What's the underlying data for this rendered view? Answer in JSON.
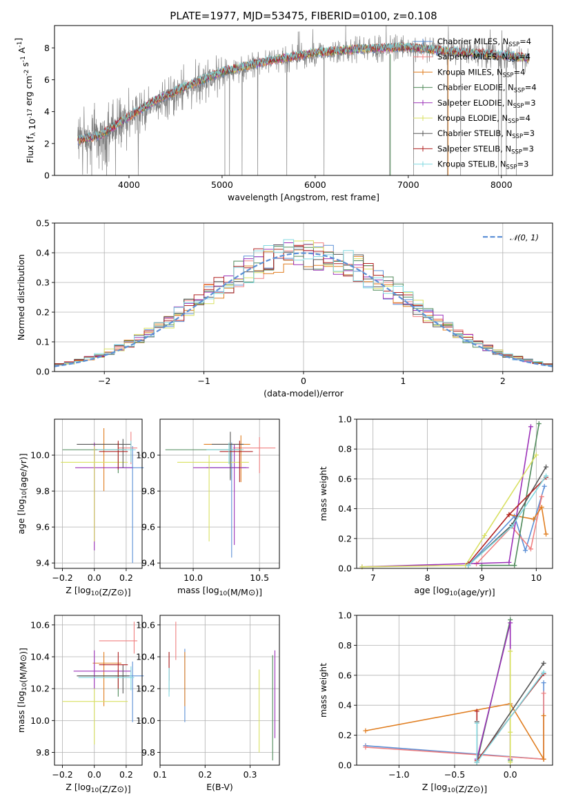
{
  "figure_title": "PLATE=1977, MJD=53475, FIBERID=0100, z=0.108",
  "models": [
    {
      "name": "Chabrier MILES, N_SSP=4",
      "base": "Chabrier MILES, N",
      "sub": "SSP",
      "suffix": "=4",
      "color": "#5b8fd6"
    },
    {
      "name": "Salpeter MILES, N_SSP=4",
      "base": "Salpeter MILES, N",
      "sub": "SSP",
      "suffix": "=4",
      "color": "#f07f7f"
    },
    {
      "name": "Kroupa MILES, N_SSP=4",
      "base": "Kroupa MILES, N",
      "sub": "SSP",
      "suffix": "=4",
      "color": "#e07d1f"
    },
    {
      "name": "Chabrier ELODIE, N_SSP=4",
      "base": "Chabrier ELODIE, N",
      "sub": "SSP",
      "suffix": "=4",
      "color": "#4f8a5a"
    },
    {
      "name": "Salpeter ELODIE, N_SSP=3",
      "base": "Salpeter ELODIE, N",
      "sub": "SSP",
      "suffix": "=3",
      "color": "#9b30b8"
    },
    {
      "name": "Kroupa ELODIE, N_SSP=4",
      "base": "Kroupa ELODIE, N",
      "sub": "SSP",
      "suffix": "=4",
      "color": "#d8e060"
    },
    {
      "name": "Chabrier STELIB, N_SSP=3",
      "base": "Chabrier STELIB, N",
      "sub": "SSP",
      "suffix": "=3",
      "color": "#555555"
    },
    {
      "name": "Salpeter STELIB, N_SSP=3",
      "base": "Salpeter STELIB, N",
      "sub": "SSP",
      "suffix": "=3",
      "color": "#b02020"
    },
    {
      "name": "Kroupa STELIB, N_SSP=3",
      "base": "Kroupa STELIB, N",
      "sub": "SSP",
      "suffix": "=3",
      "color": "#80d8e0"
    }
  ],
  "chart_data": [
    {
      "id": "spectrum",
      "type": "line",
      "xlabel": "wavelength [Angstrom, rest frame]",
      "ylabel": "Flux [f_λ 10^-17 erg cm^-2 s^-1 A^-1]",
      "xlim": [
        3200,
        8550
      ],
      "ylim": [
        0,
        9.4
      ],
      "xticks": [
        4000,
        5000,
        6000,
        7000,
        8000
      ],
      "yticks": [
        0,
        2,
        4,
        6,
        8
      ],
      "data_color": "#808080",
      "data_envelope": {
        "x": [
          3450,
          3700,
          4000,
          4300,
          4600,
          5000,
          5500,
          6000,
          6500,
          7000,
          7500,
          8000,
          8300
        ],
        "y": [
          2.2,
          2.5,
          3.6,
          4.6,
          5.4,
          6.4,
          7.1,
          7.6,
          7.9,
          8.0,
          7.7,
          7.5,
          7.3
        ]
      },
      "model_continuum": {
        "x": [
          3450,
          3700,
          4000,
          4300,
          4600,
          5000,
          5500,
          6000,
          6500,
          7000,
          7500,
          8000,
          8300
        ],
        "y": [
          2.2,
          2.55,
          3.7,
          4.75,
          5.55,
          6.5,
          7.2,
          7.7,
          7.95,
          8.05,
          7.75,
          7.55,
          7.35
        ]
      },
      "legend_loc": "upper right"
    },
    {
      "id": "residuals",
      "type": "step",
      "xlabel": "(data-model)/error",
      "ylabel": "Normed distribution",
      "xlim": [
        -2.5,
        2.5
      ],
      "ylim": [
        0,
        0.5
      ],
      "xticks": [
        -2,
        -1,
        0,
        1,
        2
      ],
      "xticklabels": [
        "−2",
        "−1",
        "0",
        "1",
        "2"
      ],
      "yticks": [
        0,
        0.1,
        0.2,
        0.3,
        0.4,
        0.5
      ],
      "yticklabels": [
        "0.0",
        "0.1",
        "0.2",
        "0.3",
        "0.4",
        "0.5"
      ],
      "bin_width": 0.1,
      "reference_curve": {
        "label": "𝒩(0, 1)",
        "color": "#5b8fd6",
        "mean": 0,
        "sigma": 1
      },
      "legend_loc": "upper right"
    },
    {
      "id": "z_age",
      "type": "errorbar",
      "xlabel": "Z [log10(Z/Z⊙)]",
      "ylabel": "age  [log10(age/yr)]",
      "xlim": [
        -0.25,
        0.3
      ],
      "ylim": [
        9.37,
        10.2
      ],
      "xticks": [
        -0.2,
        0.0,
        0.2
      ],
      "xticklabels": [
        "−0.2",
        "0.0",
        "0.2"
      ],
      "yticks": [
        9.4,
        9.6,
        9.8,
        10.0
      ],
      "yticklabels": [
        "9.4",
        "9.6",
        "9.8",
        "10.0"
      ],
      "points": [
        {
          "m": 0,
          "x": 0.24,
          "y": 9.93,
          "xl": 0.14,
          "xh": 0.31,
          "yl": 9.4,
          "yh": 10.05
        },
        {
          "m": 1,
          "x": 0.23,
          "y": 10.04,
          "xl": 0.15,
          "xh": 0.27,
          "yl": 9.95,
          "yh": 10.13
        },
        {
          "m": 2,
          "x": 0.06,
          "y": 10.06,
          "xl": -0.02,
          "xh": 0.16,
          "yl": 9.8,
          "yh": 10.15
        },
        {
          "m": 3,
          "x": 0.15,
          "y": 10.03,
          "xl": -0.2,
          "xh": 0.2,
          "yl": 9.9,
          "yh": 10.07
        },
        {
          "m": 4,
          "x": 0.0,
          "y": 9.93,
          "xl": -0.12,
          "xh": 0.24,
          "yl": 9.47,
          "yh": 10.07
        },
        {
          "m": 5,
          "x": 0.0,
          "y": 9.96,
          "xl": -0.21,
          "xh": 0.21,
          "yl": 9.52,
          "yh": 10.05
        },
        {
          "m": 6,
          "x": 0.18,
          "y": 10.06,
          "xl": -0.11,
          "xh": 0.23,
          "yl": 9.93,
          "yh": 10.09
        },
        {
          "m": 7,
          "x": 0.15,
          "y": 10.02,
          "xl": 0.03,
          "xh": 0.21,
          "yl": 9.92,
          "yh": 10.08
        },
        {
          "m": 8,
          "x": 0.23,
          "y": 10.03,
          "xl": 0.02,
          "xh": 0.26,
          "yl": 9.96,
          "yh": 10.08
        }
      ]
    },
    {
      "id": "mass_age",
      "type": "errorbar",
      "xlabel": "mass [log10(M/M⊙)]",
      "ylabel": "",
      "xlim": [
        9.75,
        10.65
      ],
      "ylim": [
        9.37,
        10.2
      ],
      "xticks": [
        10.0,
        10.5
      ],
      "xticklabels": [
        "10.0",
        "10.5"
      ],
      "yticks": [
        9.4,
        9.6,
        9.8,
        10.0
      ],
      "yticklabels": [
        "9.4",
        "9.6",
        "9.8",
        "10.0"
      ],
      "points": [
        {
          "m": 0,
          "x": 10.29,
          "y": 9.93,
          "xl": 10.1,
          "xh": 10.4,
          "yl": 9.43,
          "yh": 10.07
        },
        {
          "m": 1,
          "x": 10.5,
          "y": 10.04,
          "xl": 10.3,
          "xh": 10.62,
          "yl": 9.9,
          "yh": 10.1
        },
        {
          "m": 2,
          "x": 10.36,
          "y": 10.06,
          "xl": 10.08,
          "xh": 10.43,
          "yl": 9.85,
          "yh": 10.11
        },
        {
          "m": 3,
          "x": 10.28,
          "y": 10.03,
          "xl": 9.79,
          "xh": 10.36,
          "yl": 9.87,
          "yh": 10.06
        },
        {
          "m": 4,
          "x": 10.31,
          "y": 9.93,
          "xl": 10.0,
          "xh": 10.42,
          "yl": 9.5,
          "yh": 10.06
        },
        {
          "m": 5,
          "x": 10.12,
          "y": 9.96,
          "xl": 9.88,
          "xh": 10.42,
          "yl": 9.52,
          "yh": 10.0
        },
        {
          "m": 6,
          "x": 10.28,
          "y": 10.06,
          "xl": 10.14,
          "xh": 10.38,
          "yl": 9.86,
          "yh": 10.13
        },
        {
          "m": 7,
          "x": 10.35,
          "y": 10.02,
          "xl": 10.2,
          "xh": 10.45,
          "yl": 9.85,
          "yh": 10.08
        },
        {
          "m": 8,
          "x": 10.27,
          "y": 10.03,
          "xl": 10.1,
          "xh": 10.38,
          "yl": 9.95,
          "yh": 10.07
        }
      ]
    },
    {
      "id": "age_weight",
      "type": "line",
      "xlabel": "age  [log10(age/yr)]",
      "ylabel": "mass weight",
      "xlim": [
        6.7,
        10.3
      ],
      "ylim": [
        0,
        1
      ],
      "xticks": [
        7,
        8,
        9,
        10
      ],
      "xticklabels": [
        "7",
        "8",
        "9",
        "10"
      ],
      "yticks": [
        0,
        0.2,
        0.4,
        0.6,
        0.8,
        1.0
      ],
      "yticklabels": [
        "0.0",
        "0.2",
        "0.4",
        "0.6",
        "0.8",
        "1.0"
      ],
      "series": [
        {
          "m": 0,
          "x": [
            8.75,
            9.6,
            9.8,
            10.15
          ],
          "y": [
            0.02,
            0.35,
            0.12,
            0.55
          ]
        },
        {
          "m": 1,
          "x": 8.9,
          "y": 0.03,
          "x2": [
            8.9,
            9.55,
            9.9,
            10.1
          ],
          "y2": [
            0.03,
            0.28,
            0.13,
            0.48
          ]
        },
        {
          "m": 2,
          "x": [
            9.5,
            9.95,
            10.1,
            10.18
          ],
          "y": [
            0.36,
            0.33,
            0.41,
            0.23
          ]
        },
        {
          "m": 3,
          "x": [
            9.0,
            9.6,
            10.05
          ],
          "y": [
            0.02,
            0.02,
            0.97
          ]
        },
        {
          "m": 4,
          "x": [
            6.8,
            9.5,
            9.9
          ],
          "y": [
            0.01,
            0.04,
            0.95
          ]
        },
        {
          "m": 5,
          "x": [
            6.8,
            8.7,
            9.05,
            10.0
          ],
          "y": [
            0.01,
            0.02,
            0.22,
            0.76
          ]
        },
        {
          "m": 6,
          "x": [
            8.75,
            9.55,
            10.18
          ],
          "y": [
            0.02,
            0.29,
            0.68
          ]
        },
        {
          "m": 7,
          "x": [
            8.75,
            9.5,
            10.18
          ],
          "y": [
            0.03,
            0.36,
            0.61
          ]
        },
        {
          "m": 8,
          "x": [
            8.75,
            9.55,
            10.18
          ],
          "y": [
            0.02,
            0.28,
            0.62
          ]
        }
      ]
    },
    {
      "id": "z_mass",
      "type": "errorbar",
      "xlabel": "Z [log10(Z/Z⊙)]",
      "ylabel": "mass [log10(M/M⊙)]",
      "xlim": [
        -0.25,
        0.3
      ],
      "ylim": [
        9.72,
        10.66
      ],
      "xticks": [
        -0.2,
        0.0,
        0.2
      ],
      "xticklabels": [
        "−0.2",
        "0.0",
        "0.2"
      ],
      "yticks": [
        9.8,
        10.0,
        10.2,
        10.4,
        10.6
      ],
      "yticklabels": [
        "9.8",
        "10.0",
        "10.2",
        "10.4",
        "10.6"
      ],
      "points": [
        {
          "m": 0,
          "x": 0.24,
          "y": 10.28,
          "xl": 0.13,
          "xh": 0.31,
          "yl": 9.99,
          "yh": 10.37
        },
        {
          "m": 1,
          "x": 0.25,
          "y": 10.5,
          "xl": 0.03,
          "xh": 0.27,
          "yl": 10.42,
          "yh": 10.62
        },
        {
          "m": 2,
          "x": 0.06,
          "y": 10.36,
          "xl": -0.01,
          "xh": 0.17,
          "yl": 10.09,
          "yh": 10.43
        },
        {
          "m": 3,
          "x": 0.15,
          "y": 10.28,
          "xl": -0.1,
          "xh": 0.2,
          "yl": 10.15,
          "yh": 10.32
        },
        {
          "m": 4,
          "x": 0.0,
          "y": 10.31,
          "xl": -0.13,
          "xh": 0.23,
          "yl": 10.2,
          "yh": 10.44
        },
        {
          "m": 5,
          "x": 0.0,
          "y": 10.12,
          "xl": -0.2,
          "xh": 0.21,
          "yl": 9.85,
          "yh": 10.2
        },
        {
          "m": 6,
          "x": 0.18,
          "y": 10.28,
          "xl": -0.11,
          "xh": 0.22,
          "yl": 10.17,
          "yh": 10.35
        },
        {
          "m": 7,
          "x": 0.15,
          "y": 10.35,
          "xl": 0.03,
          "xh": 0.21,
          "yl": 10.2,
          "yh": 10.43
        },
        {
          "m": 8,
          "x": 0.23,
          "y": 10.27,
          "xl": -0.1,
          "xh": 0.25,
          "yl": 10.19,
          "yh": 10.34
        }
      ]
    },
    {
      "id": "ebv_mass",
      "type": "errorbar",
      "xlabel": "E(B-V)",
      "ylabel": "",
      "xlim": [
        0.1,
        0.365
      ],
      "ylim": [
        9.72,
        10.66
      ],
      "xticks": [
        0.1,
        0.2,
        0.3
      ],
      "xticklabels": [
        "0.1",
        "0.2",
        "0.3"
      ],
      "yticks": [
        9.8,
        10.0,
        10.2,
        10.4,
        10.6
      ],
      "yticklabels": [
        "9.8",
        "10.0",
        "10.2",
        "10.4",
        "10.6"
      ],
      "points": [
        {
          "m": 0,
          "x": 0.155,
          "y": 10.28,
          "xl": 0.155,
          "xh": 0.155,
          "yl": 9.99,
          "yh": 10.45
        },
        {
          "m": 1,
          "x": 0.135,
          "y": 10.5,
          "xl": 0.135,
          "xh": 0.135,
          "yl": 10.38,
          "yh": 10.62
        },
        {
          "m": 2,
          "x": 0.155,
          "y": 10.36,
          "xl": 0.155,
          "xh": 0.155,
          "yl": 10.09,
          "yh": 10.43
        },
        {
          "m": 3,
          "x": 0.35,
          "y": 10.28,
          "xl": 0.35,
          "xh": 0.35,
          "yl": 9.75,
          "yh": 10.41
        },
        {
          "m": 4,
          "x": 0.355,
          "y": 10.31,
          "xl": 0.355,
          "xh": 0.355,
          "yl": 9.89,
          "yh": 10.44
        },
        {
          "m": 5,
          "x": 0.32,
          "y": 10.12,
          "xl": 0.32,
          "xh": 0.32,
          "yl": 9.8,
          "yh": 10.32
        },
        {
          "m": 6,
          "x": 0.12,
          "y": 10.28,
          "xl": 0.12,
          "xh": 0.12,
          "yl": 10.18,
          "yh": 10.43
        },
        {
          "m": 7,
          "x": 0.12,
          "y": 10.35,
          "xl": 0.12,
          "xh": 0.12,
          "yl": 10.25,
          "yh": 10.43
        },
        {
          "m": 8,
          "x": 0.12,
          "y": 10.27,
          "xl": 0.12,
          "xh": 0.12,
          "yl": 10.15,
          "yh": 10.33
        }
      ]
    },
    {
      "id": "z_weight",
      "type": "line",
      "xlabel": "Z [log10(Z/Z⊙)]",
      "ylabel": "mass weight",
      "xlim": [
        -1.38,
        0.38
      ],
      "ylim": [
        0,
        1
      ],
      "xticks": [
        -1.0,
        -0.5,
        0.0
      ],
      "xticklabels": [
        "−1.0",
        "−0.5",
        "0.0"
      ],
      "yticks": [
        0,
        0.2,
        0.4,
        0.6,
        0.8,
        1.0
      ],
      "yticklabels": [
        "0.0",
        "0.2",
        "0.4",
        "0.6",
        "0.8",
        "1.0"
      ],
      "series": [
        {
          "m": 0,
          "x": [
            -1.3,
            0.3,
            0.3
          ],
          "y": [
            0.13,
            0.04,
            0.55
          ]
        },
        {
          "m": 1,
          "x": [
            -1.3,
            0.3,
            0.3
          ],
          "y": [
            0.12,
            0.04,
            0.48
          ]
        },
        {
          "m": 2,
          "x": [
            -1.3,
            0.0,
            0.3,
            0.3
          ],
          "y": [
            0.23,
            0.41,
            0.04,
            0.33
          ]
        },
        {
          "m": 3,
          "x": [
            -0.3,
            0.0,
            0.0
          ],
          "y": [
            0.02,
            0.97,
            0.03
          ]
        },
        {
          "m": 4,
          "x": [
            -0.3,
            0.0,
            0.0
          ],
          "y": [
            0.04,
            0.95,
            0.04
          ]
        },
        {
          "m": 5,
          "x": [
            0.0,
            0.0,
            0.0
          ],
          "y": [
            0.22,
            0.76,
            0.02
          ]
        },
        {
          "m": 6,
          "x": [
            -0.3,
            -0.3,
            0.3
          ],
          "y": [
            0.29,
            0.02,
            0.68
          ]
        },
        {
          "m": 7,
          "x": [
            -0.3,
            -0.3,
            0.3
          ],
          "y": [
            0.36,
            0.03,
            0.61
          ]
        },
        {
          "m": 8,
          "x": [
            -0.3,
            -0.3,
            0.3
          ],
          "y": [
            0.28,
            0.02,
            0.62
          ]
        }
      ]
    }
  ]
}
